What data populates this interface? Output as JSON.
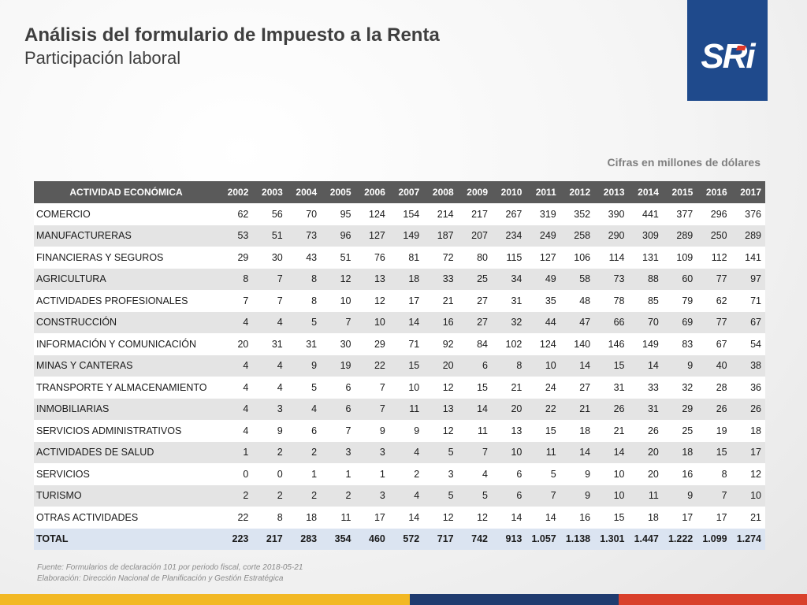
{
  "header": {
    "title": "Análisis del formulario de Impuesto a la Renta",
    "subtitle": "Participación laboral",
    "logo_text": "SRi",
    "units_note": "Cifras en millones de dólares"
  },
  "table": {
    "columns": [
      "ACTIVIDAD ECONÓMICA",
      "2002",
      "2003",
      "2004",
      "2005",
      "2006",
      "2007",
      "2008",
      "2009",
      "2010",
      "2011",
      "2012",
      "2013",
      "2014",
      "2015",
      "2016",
      "2017"
    ],
    "rows": [
      [
        "COMERCIO",
        "62",
        "56",
        "70",
        "95",
        "124",
        "154",
        "214",
        "217",
        "267",
        "319",
        "352",
        "390",
        "441",
        "377",
        "296",
        "376"
      ],
      [
        "MANUFACTURERAS",
        "53",
        "51",
        "73",
        "96",
        "127",
        "149",
        "187",
        "207",
        "234",
        "249",
        "258",
        "290",
        "309",
        "289",
        "250",
        "289"
      ],
      [
        "FINANCIERAS Y SEGUROS",
        "29",
        "30",
        "43",
        "51",
        "76",
        "81",
        "72",
        "80",
        "115",
        "127",
        "106",
        "114",
        "131",
        "109",
        "112",
        "141"
      ],
      [
        "AGRICULTURA",
        "8",
        "7",
        "8",
        "12",
        "13",
        "18",
        "33",
        "25",
        "34",
        "49",
        "58",
        "73",
        "88",
        "60",
        "77",
        "97"
      ],
      [
        "ACTIVIDADES PROFESIONALES",
        "7",
        "7",
        "8",
        "10",
        "12",
        "17",
        "21",
        "27",
        "31",
        "35",
        "48",
        "78",
        "85",
        "79",
        "62",
        "71"
      ],
      [
        "CONSTRUCCIÓN",
        "4",
        "4",
        "5",
        "7",
        "10",
        "14",
        "16",
        "27",
        "32",
        "44",
        "47",
        "66",
        "70",
        "69",
        "77",
        "67"
      ],
      [
        "INFORMACIÓN Y COMUNICACIÓN",
        "20",
        "31",
        "31",
        "30",
        "29",
        "71",
        "92",
        "84",
        "102",
        "124",
        "140",
        "146",
        "149",
        "83",
        "67",
        "54"
      ],
      [
        "MINAS Y CANTERAS",
        "4",
        "4",
        "9",
        "19",
        "22",
        "15",
        "20",
        "6",
        "8",
        "10",
        "14",
        "15",
        "14",
        "9",
        "40",
        "38"
      ],
      [
        "TRANSPORTE Y ALMACENAMIENTO",
        "4",
        "4",
        "5",
        "6",
        "7",
        "10",
        "12",
        "15",
        "21",
        "24",
        "27",
        "31",
        "33",
        "32",
        "28",
        "36"
      ],
      [
        "INMOBILIARIAS",
        "4",
        "3",
        "4",
        "6",
        "7",
        "11",
        "13",
        "14",
        "20",
        "22",
        "21",
        "26",
        "31",
        "29",
        "26",
        "26"
      ],
      [
        "SERVICIOS ADMINISTRATIVOS",
        "4",
        "9",
        "6",
        "7",
        "9",
        "9",
        "12",
        "11",
        "13",
        "15",
        "18",
        "21",
        "26",
        "25",
        "19",
        "18"
      ],
      [
        "ACTIVIDADES DE SALUD",
        "1",
        "2",
        "2",
        "3",
        "3",
        "4",
        "5",
        "7",
        "10",
        "11",
        "14",
        "14",
        "20",
        "18",
        "15",
        "17"
      ],
      [
        "SERVICIOS",
        "0",
        "0",
        "1",
        "1",
        "1",
        "2",
        "3",
        "4",
        "6",
        "5",
        "9",
        "10",
        "20",
        "16",
        "8",
        "12"
      ],
      [
        "TURISMO",
        "2",
        "2",
        "2",
        "2",
        "3",
        "4",
        "5",
        "5",
        "6",
        "7",
        "9",
        "10",
        "11",
        "9",
        "7",
        "10"
      ],
      [
        "OTRAS ACTIVIDADES",
        "22",
        "8",
        "18",
        "11",
        "17",
        "14",
        "12",
        "12",
        "14",
        "14",
        "16",
        "15",
        "18",
        "17",
        "17",
        "21"
      ]
    ],
    "total": [
      "TOTAL",
      "223",
      "217",
      "283",
      "354",
      "460",
      "572",
      "717",
      "742",
      "913",
      "1.057",
      "1.138",
      "1.301",
      "1.447",
      "1.222",
      "1.099",
      "1.274"
    ]
  },
  "footer": {
    "source": "Fuente: Formularios de declaración 101 por periodo fiscal, corte 2018-05-21",
    "elaboration": "Elaboración: Dirección Nacional de Planificación y Gestión Estratégica"
  },
  "colors": {
    "header_bg": "#5a5a5a",
    "row_alt": "#e4e4e4",
    "total_bg": "#dbe4f1",
    "logo_bg": "#1f4a8c",
    "bar_yellow": "#f2b824",
    "bar_navy": "#1f3b6f",
    "bar_red": "#d9402b"
  }
}
